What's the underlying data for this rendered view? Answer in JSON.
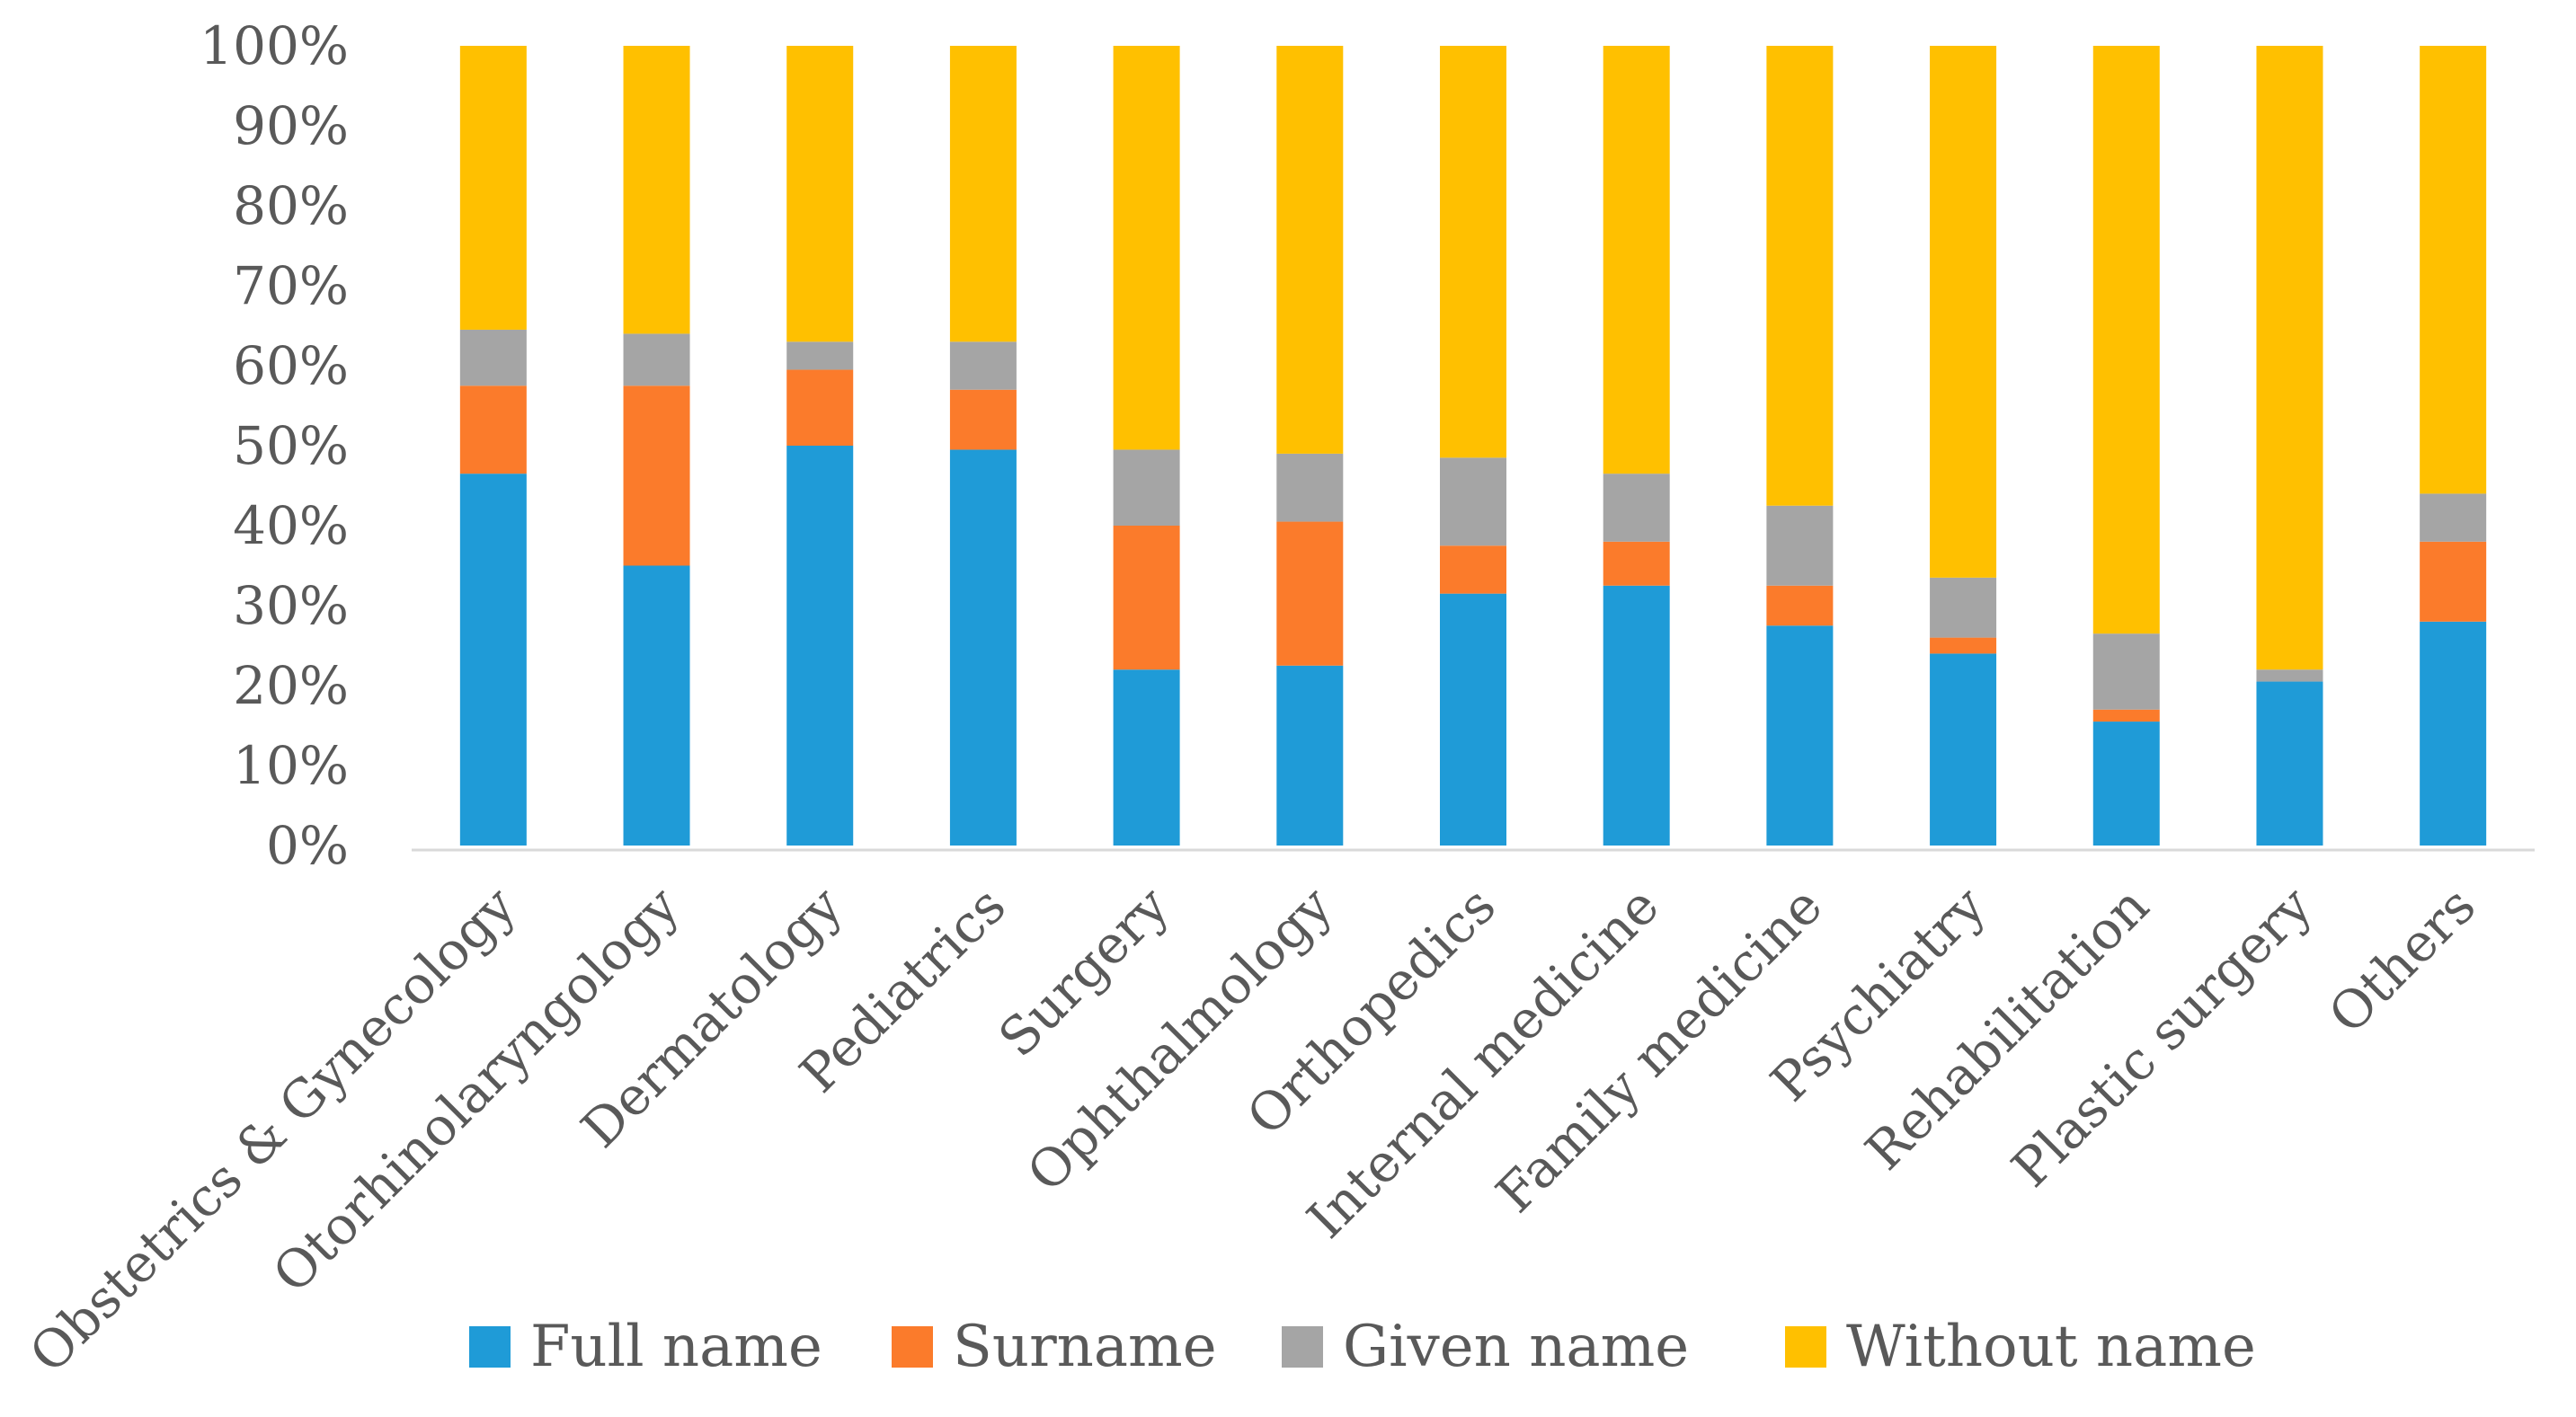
{
  "chart_data": {
    "type": "bar",
    "stacked": true,
    "percent_scale": true,
    "title": "",
    "xlabel": "",
    "ylabel": "",
    "ylim": [
      0,
      100
    ],
    "y_ticks": [
      "0%",
      "10%",
      "20%",
      "30%",
      "40%",
      "50%",
      "60%",
      "70%",
      "80%",
      "90%",
      "100%"
    ],
    "grid": false,
    "legend_position": "bottom",
    "categories": [
      "Obstetrics & Gynecology",
      "Otorhinolaryngology",
      "Dermatology",
      "Pediatrics",
      "Surgery",
      "Ophthalmology",
      "Orthopedics",
      "Internal medicine",
      "Family medicine",
      "Psychiatry",
      "Rehabilitation",
      "Plastic surgery",
      "Others"
    ],
    "series": [
      {
        "name": "Full name",
        "color": "#1f9bd7",
        "values": [
          46.5,
          35,
          50,
          49.5,
          22,
          22.5,
          31.5,
          32.5,
          27.5,
          24,
          15.5,
          20.5,
          28
        ]
      },
      {
        "name": "Surname",
        "color": "#fb7b2b",
        "values": [
          11,
          22.5,
          9.5,
          7.5,
          18,
          18,
          6,
          5.5,
          5,
          2,
          1.5,
          0,
          10
        ]
      },
      {
        "name": "Given name",
        "color": "#a5a5a5",
        "values": [
          7,
          6.5,
          3.5,
          6,
          9.5,
          8.5,
          11,
          8.5,
          10,
          7.5,
          9.5,
          1.5,
          6
        ]
      },
      {
        "name": "Without name",
        "color": "#ffc000",
        "values": [
          35.5,
          36,
          37,
          37,
          50.5,
          51,
          51.5,
          53.5,
          57.5,
          66.5,
          73.5,
          78,
          56
        ]
      }
    ]
  }
}
